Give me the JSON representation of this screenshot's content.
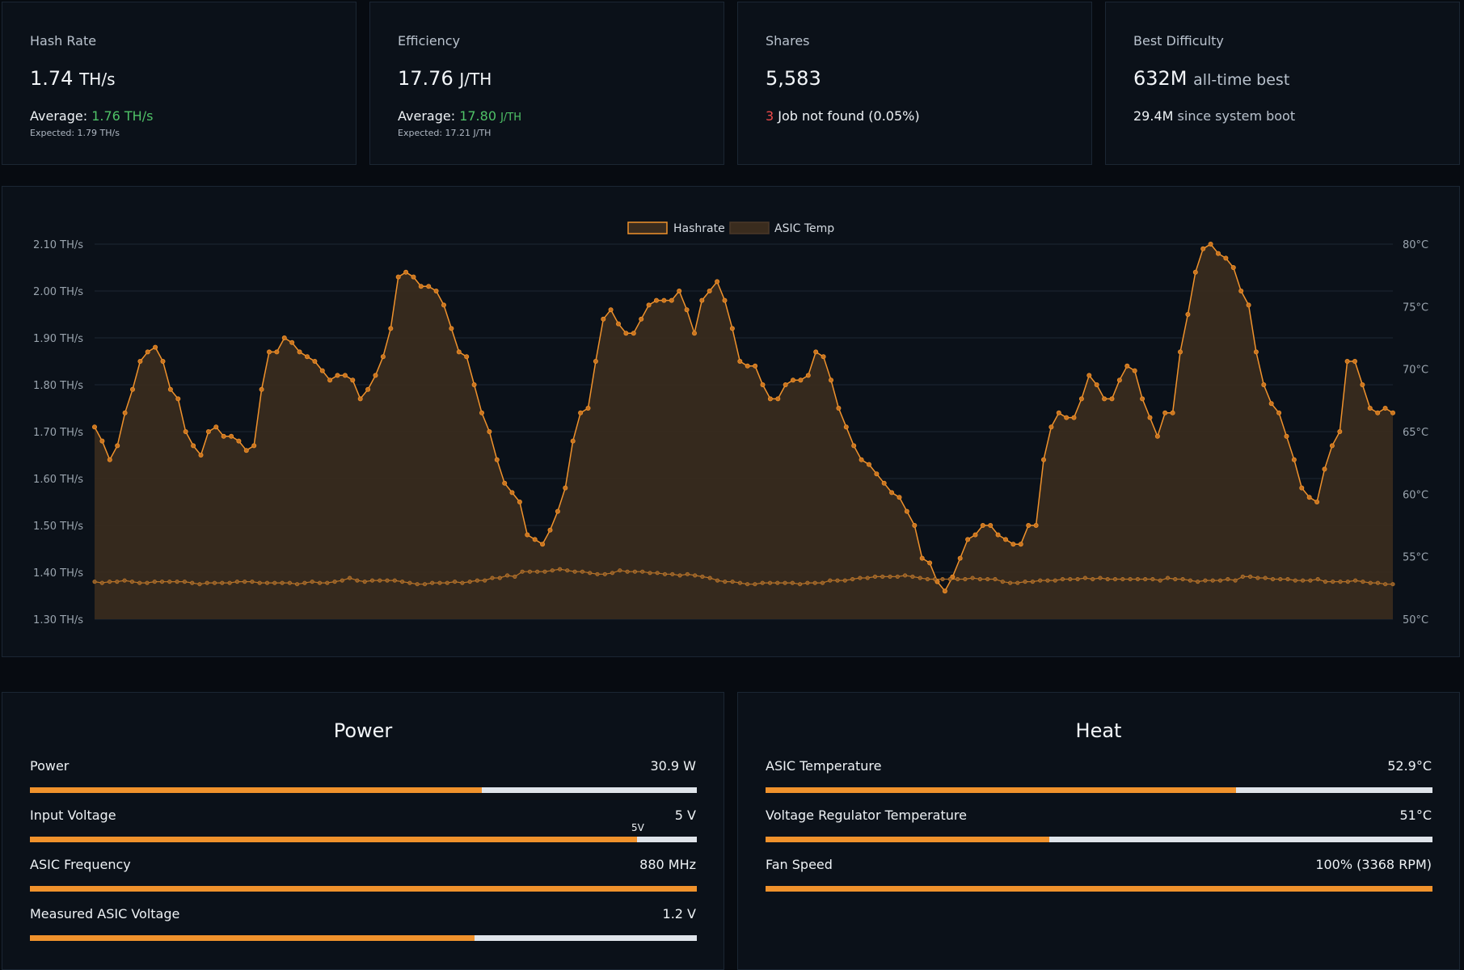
{
  "stats": [
    {
      "title": "Hash Rate",
      "value": "1.74",
      "unit": "TH/s",
      "line_label": "Average:",
      "line_value": "1.76",
      "line_unit": "TH/s",
      "sub": "Expected: 1.79 TH/s"
    },
    {
      "title": "Efficiency",
      "value": "17.76",
      "unit": "J/TH",
      "line_label": "Average:",
      "line_value": "17.80",
      "line_unit": "J/TH",
      "sub": "Expected: 17.21 J/TH"
    },
    {
      "title": "Shares",
      "value": "5,583",
      "rejected_count": "3",
      "rejected_text": "Job not found (0.05%)"
    },
    {
      "title": "Best Difficulty",
      "value": "632M",
      "value_suffix": "all-time best",
      "line_value": "29.4M",
      "line_suffix": "since system boot"
    }
  ],
  "chart_data": {
    "type": "line",
    "series": [
      {
        "name": "Hashrate",
        "axis": "left",
        "unit": "TH/s",
        "color": "#f0922c",
        "values": [
          1.71,
          1.68,
          1.64,
          1.67,
          1.74,
          1.79,
          1.85,
          1.87,
          1.88,
          1.85,
          1.79,
          1.77,
          1.7,
          1.67,
          1.65,
          1.7,
          1.71,
          1.69,
          1.69,
          1.68,
          1.66,
          1.67,
          1.79,
          1.87,
          1.87,
          1.9,
          1.89,
          1.87,
          1.86,
          1.85,
          1.83,
          1.81,
          1.82,
          1.82,
          1.81,
          1.77,
          1.79,
          1.82,
          1.86,
          1.92,
          2.03,
          2.04,
          2.03,
          2.01,
          2.01,
          2.0,
          1.97,
          1.92,
          1.87,
          1.86,
          1.8,
          1.74,
          1.7,
          1.64,
          1.59,
          1.57,
          1.55,
          1.48,
          1.47,
          1.46,
          1.49,
          1.53,
          1.58,
          1.68,
          1.74,
          1.75,
          1.85,
          1.94,
          1.96,
          1.93,
          1.91,
          1.91,
          1.94,
          1.97,
          1.98,
          1.98,
          1.98,
          2.0,
          1.96,
          1.91,
          1.98,
          2.0,
          2.02,
          1.98,
          1.92,
          1.85,
          1.84,
          1.84,
          1.8,
          1.77,
          1.77,
          1.8,
          1.81,
          1.81,
          1.82,
          1.87,
          1.86,
          1.81,
          1.75,
          1.71,
          1.67,
          1.64,
          1.63,
          1.61,
          1.59,
          1.57,
          1.56,
          1.53,
          1.5,
          1.43,
          1.42,
          1.38,
          1.36,
          1.39,
          1.43,
          1.47,
          1.48,
          1.5,
          1.5,
          1.48,
          1.47,
          1.46,
          1.46,
          1.5,
          1.5,
          1.64,
          1.71,
          1.74,
          1.73,
          1.73,
          1.77,
          1.82,
          1.8,
          1.77,
          1.77,
          1.81,
          1.84,
          1.83,
          1.77,
          1.73,
          1.69,
          1.74,
          1.74,
          1.87,
          1.95,
          2.04,
          2.09,
          2.1,
          2.08,
          2.07,
          2.05,
          2.0,
          1.97,
          1.87,
          1.8,
          1.76,
          1.74,
          1.69,
          1.64,
          1.58,
          1.56,
          1.55,
          1.62,
          1.67,
          1.7,
          1.85,
          1.85,
          1.8,
          1.75,
          1.74,
          1.75,
          1.74
        ]
      },
      {
        "name": "ASIC Temp",
        "axis": "right",
        "unit": "°C",
        "color": "#f0922c",
        "values": [
          53.0,
          52.9,
          53.0,
          53.0,
          53.1,
          53.0,
          52.9,
          52.9,
          53.0,
          53.0,
          53.0,
          53.0,
          53.0,
          52.9,
          52.8,
          52.9,
          52.9,
          52.9,
          52.9,
          53.0,
          53.0,
          53.0,
          52.9,
          52.9,
          52.9,
          52.9,
          52.9,
          52.8,
          52.9,
          53.0,
          52.9,
          52.9,
          53.0,
          53.1,
          53.3,
          53.1,
          53.0,
          53.1,
          53.1,
          53.1,
          53.1,
          53.0,
          52.9,
          52.8,
          52.8,
          52.9,
          52.9,
          52.9,
          53.0,
          52.9,
          53.0,
          53.1,
          53.1,
          53.3,
          53.3,
          53.5,
          53.4,
          53.8,
          53.8,
          53.8,
          53.8,
          53.9,
          54.0,
          53.9,
          53.8,
          53.8,
          53.7,
          53.6,
          53.6,
          53.7,
          53.9,
          53.8,
          53.8,
          53.8,
          53.7,
          53.7,
          53.6,
          53.6,
          53.5,
          53.6,
          53.5,
          53.4,
          53.3,
          53.1,
          53.0,
          53.0,
          52.9,
          52.8,
          52.8,
          52.9,
          52.9,
          52.9,
          52.9,
          52.9,
          52.8,
          52.9,
          52.9,
          52.9,
          53.1,
          53.1,
          53.1,
          53.2,
          53.3,
          53.3,
          53.4,
          53.4,
          53.4,
          53.4,
          53.5,
          53.4,
          53.3,
          53.2,
          53.2,
          53.2,
          53.2,
          53.2,
          53.2,
          53.3,
          53.2,
          53.2,
          53.2,
          53.0,
          52.9,
          52.9,
          53.0,
          53.0,
          53.1,
          53.1,
          53.1,
          53.2,
          53.2,
          53.2,
          53.3,
          53.2,
          53.3,
          53.2,
          53.2,
          53.2,
          53.2,
          53.2,
          53.2,
          53.2,
          53.1,
          53.3,
          53.2,
          53.2,
          53.1,
          53.0,
          53.1,
          53.1,
          53.1,
          53.2,
          53.1,
          53.4,
          53.4,
          53.3,
          53.3,
          53.2,
          53.2,
          53.2,
          53.1,
          53.1,
          53.1,
          53.2,
          53.0,
          53.0,
          53.0,
          53.0,
          53.1,
          53.0,
          52.9,
          52.9,
          52.8,
          52.8
        ]
      }
    ],
    "y_left": {
      "min": 1.3,
      "max": 2.1,
      "ticks": [
        "2.10 TH/s",
        "2.00 TH/s",
        "1.90 TH/s",
        "1.80 TH/s",
        "1.70 TH/s",
        "1.60 TH/s",
        "1.50 TH/s",
        "1.40 TH/s",
        "1.30 TH/s"
      ]
    },
    "y_right": {
      "min": 50,
      "max": 80,
      "ticks": [
        "80°C",
        "75°C",
        "70°C",
        "65°C",
        "60°C",
        "55°C",
        "50°C"
      ]
    },
    "legend": "top-center",
    "grid": true,
    "fill_color": "#3a2c1e"
  },
  "power_panel": {
    "title": "Power",
    "gauges": [
      {
        "label": "Power",
        "value": "30.9 W",
        "fill": 0.677
      },
      {
        "label": "Input Voltage",
        "value": "5 V",
        "fill": 0.91,
        "marker": "5V"
      },
      {
        "label": "ASIC Frequency",
        "value": "880 MHz",
        "fill": 1.0
      },
      {
        "label": "Measured ASIC Voltage",
        "value": "1.2 V",
        "fill": 0.667
      }
    ]
  },
  "heat_panel": {
    "title": "Heat",
    "gauges": [
      {
        "label": "ASIC Temperature",
        "value": "52.9°C",
        "fill": 0.706
      },
      {
        "label": "Voltage Regulator Temperature",
        "value": "51°C",
        "fill": 0.425
      },
      {
        "label": "Fan Speed",
        "value": "100% (3368 RPM)",
        "fill": 1.0
      }
    ]
  }
}
